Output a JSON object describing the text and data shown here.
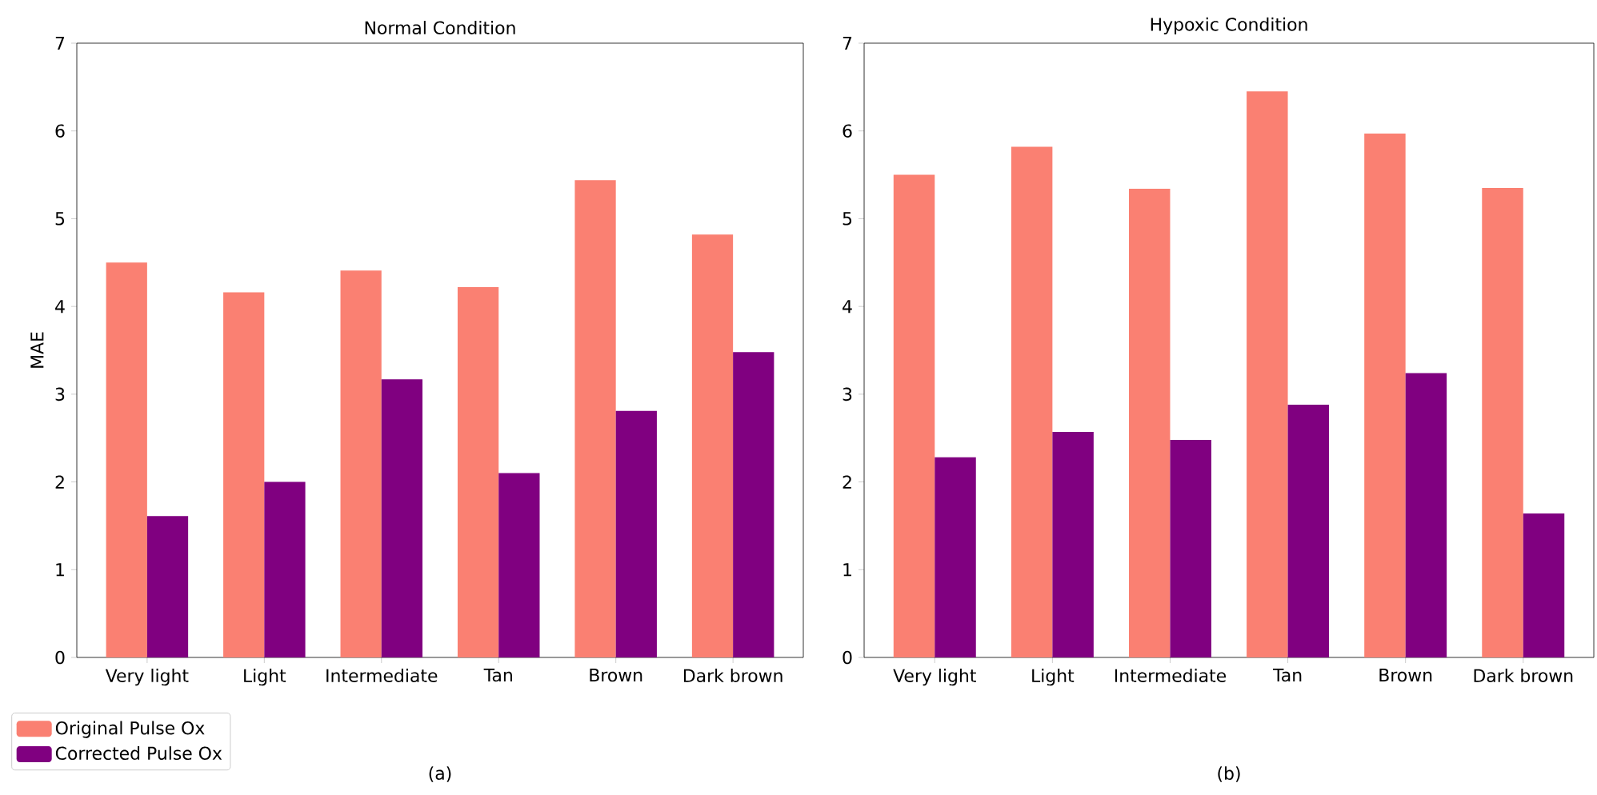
{
  "chart_data": [
    {
      "type": "bar",
      "title": "Normal Condition",
      "ylabel": "MAE",
      "categories": [
        "Very light",
        "Light",
        "Intermediate",
        "Tan",
        "Brown",
        "Dark brown"
      ],
      "series": [
        {
          "name": "Original Pulse Ox",
          "color": "#fa8072",
          "values": [
            4.5,
            4.16,
            4.41,
            4.22,
            5.44,
            4.82
          ]
        },
        {
          "name": "Corrected Pulse Ox",
          "color": "#800080",
          "values": [
            1.61,
            2.0,
            3.17,
            2.1,
            2.81,
            3.48
          ]
        }
      ],
      "ylim": [
        0,
        7
      ],
      "yticks": [
        0,
        1,
        2,
        3,
        4,
        5,
        6,
        7
      ],
      "legend": "bottom left",
      "annotations": [
        "(a)"
      ]
    },
    {
      "type": "bar",
      "title": "Hypoxic Condition",
      "categories": [
        "Very light",
        "Light",
        "Intermediate",
        "Tan",
        "Brown",
        "Dark brown"
      ],
      "series": [
        {
          "color": "#fa8072",
          "values": [
            5.5,
            5.82,
            5.34,
            6.45,
            5.97,
            5.35
          ]
        },
        {
          "color": "#800080",
          "values": [
            2.28,
            2.57,
            2.48,
            2.88,
            3.24,
            1.64
          ]
        }
      ],
      "ylim": [
        0,
        7
      ],
      "yticks": [
        0,
        1,
        2,
        3,
        4,
        5,
        6,
        7
      ],
      "annotations": [
        "(b)"
      ]
    }
  ]
}
